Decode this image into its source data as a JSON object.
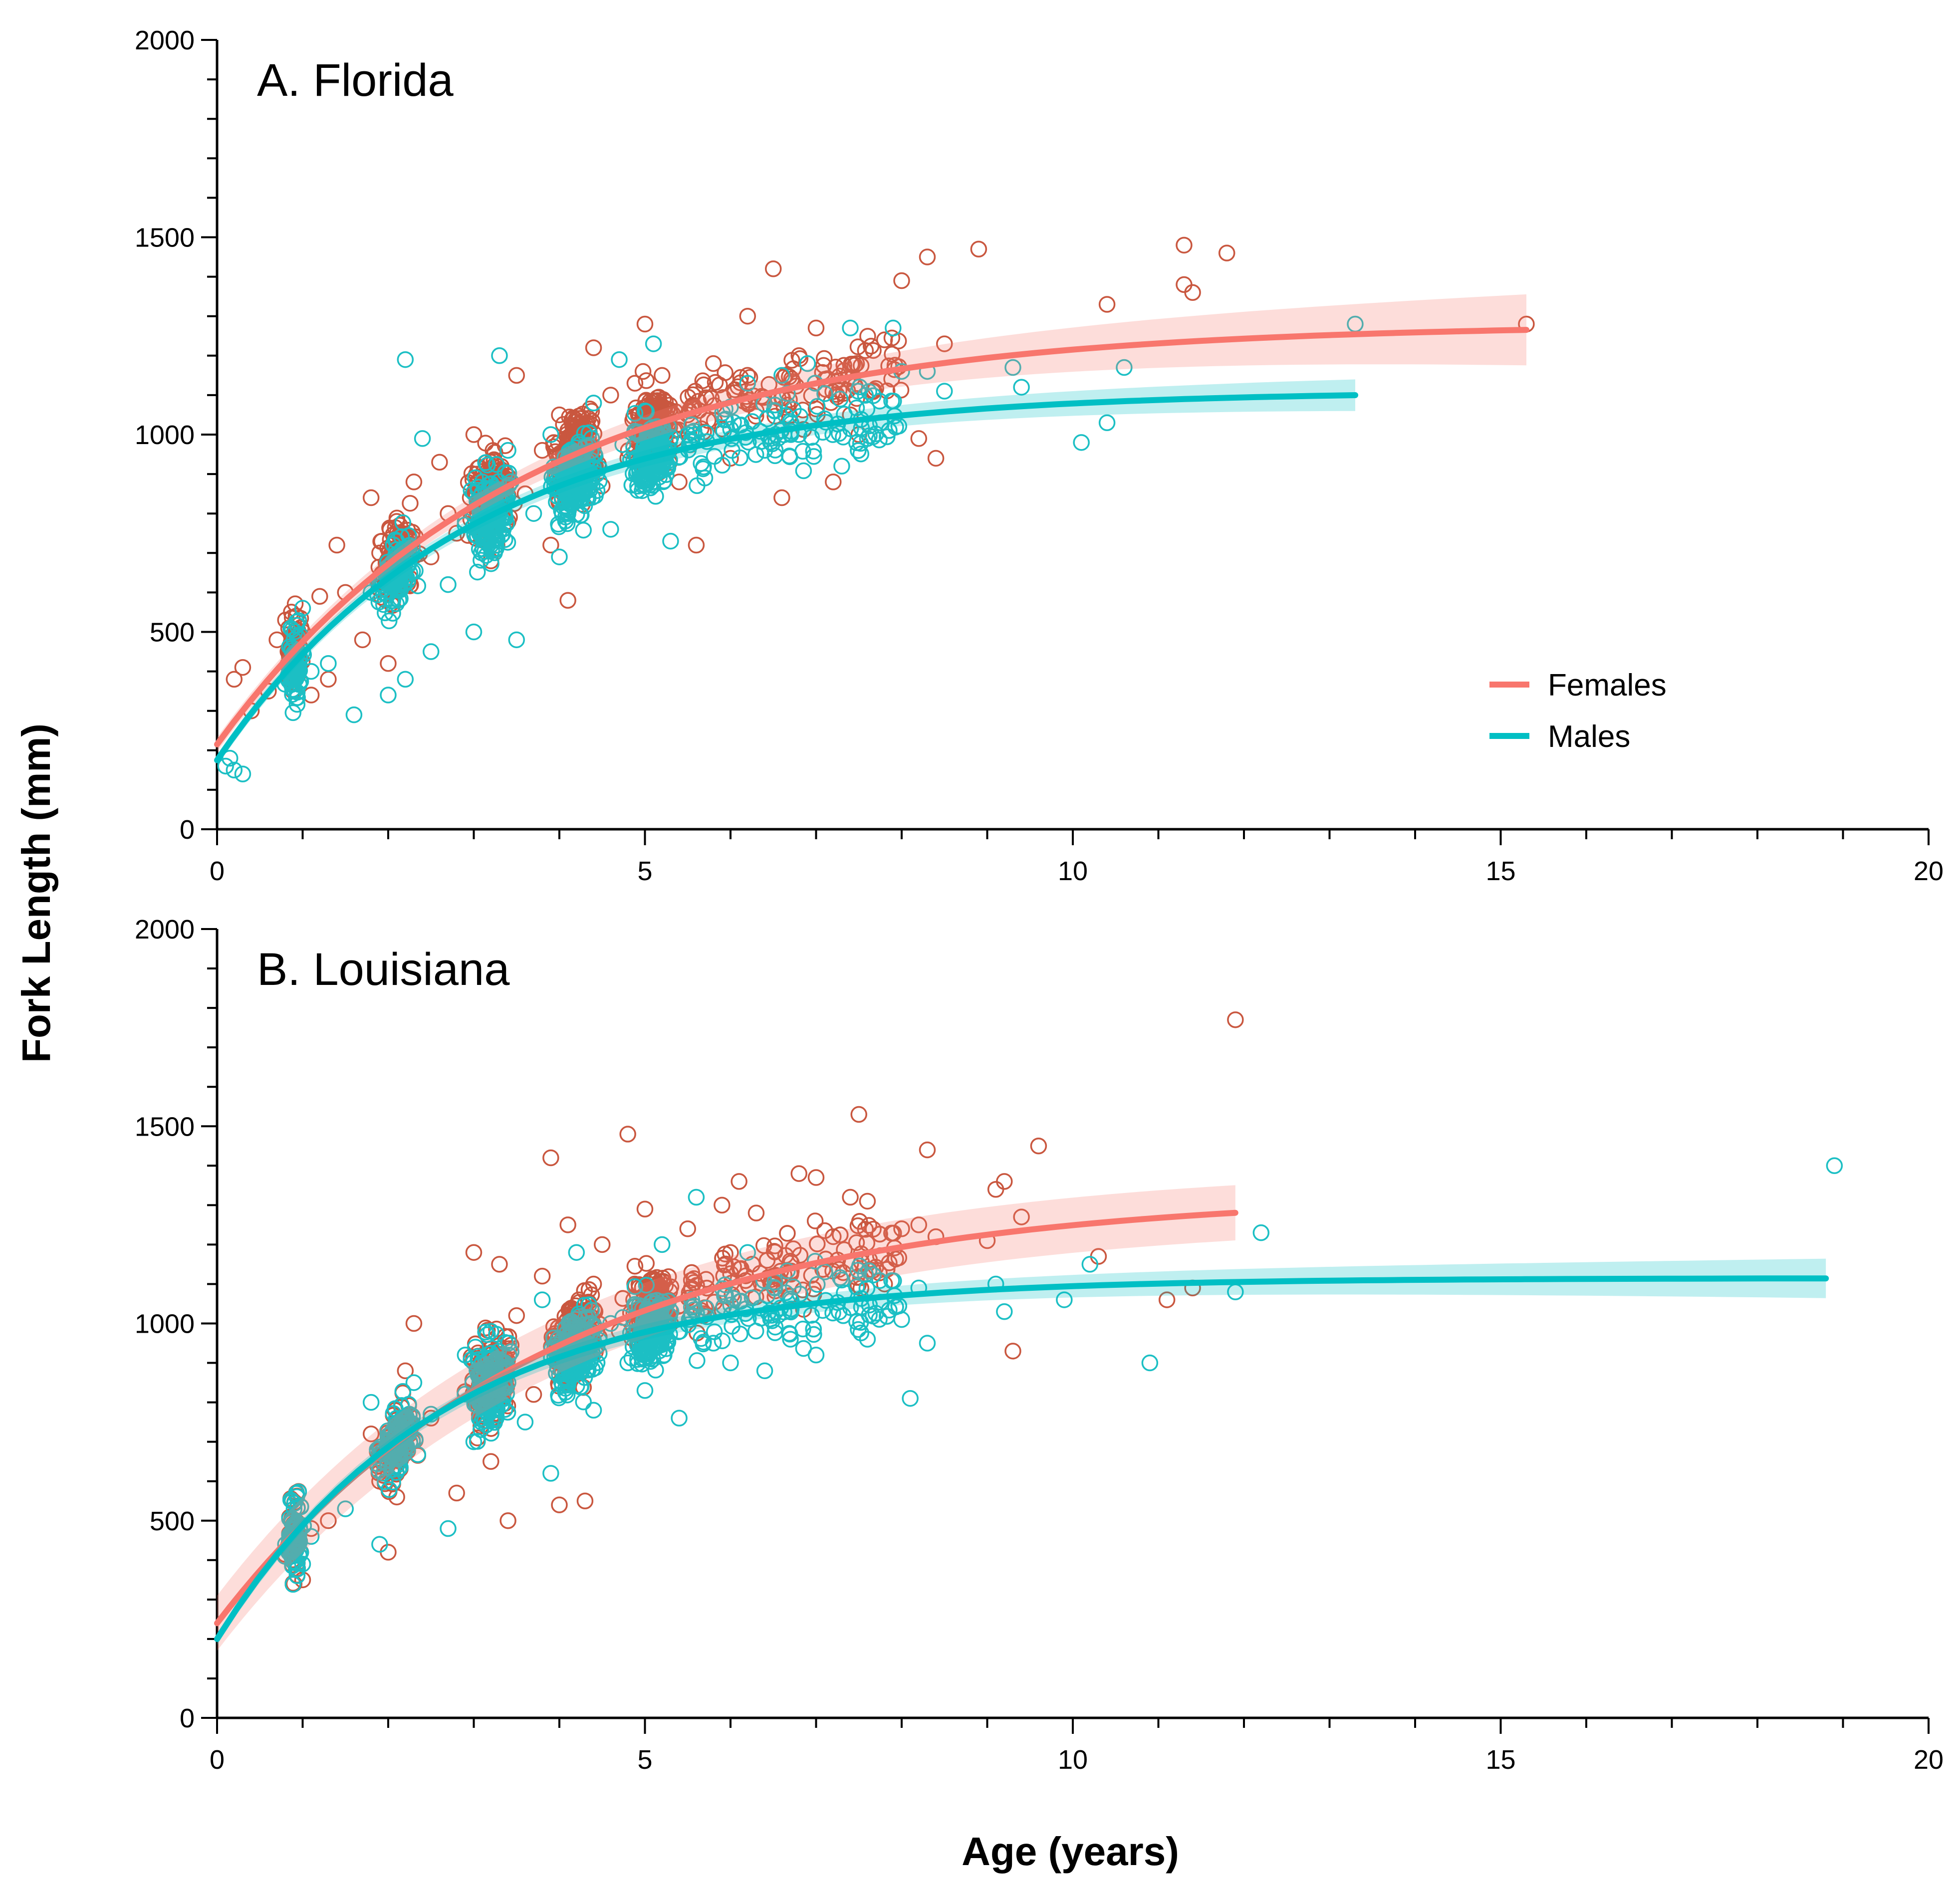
{
  "figure": {
    "ylabel": "Fork Length (mm)",
    "xlabel": "Age (years)",
    "colors": {
      "females": "#F8766D",
      "males": "#00BFC4",
      "points_females": "#C9573F",
      "points_males": "#1CBFC4"
    }
  },
  "legend": {
    "entries": [
      "Females",
      "Males"
    ],
    "position": "right"
  },
  "chart_data": [
    {
      "type": "scatter",
      "title": "A. Florida",
      "xlabel": "Age (years)",
      "ylabel": "Fork Length (mm)",
      "xlim": [
        0,
        20
      ],
      "ylim": [
        0,
        2000
      ],
      "xticks": [
        0,
        5,
        10,
        15,
        20
      ],
      "yticks": [
        0,
        500,
        1000,
        1500,
        2000
      ],
      "grid": false,
      "series": [
        {
          "name": "Females",
          "fit": {
            "model": "von Bertalanffy",
            "Linf": 1280,
            "k": 0.28,
            "L0": 215,
            "age_range": [
              0,
              15.3
            ]
          },
          "ci_halfwidth": [
            18,
            90
          ],
          "points": [
            [
              0.2,
              380
            ],
            [
              0.3,
              410
            ],
            [
              0.4,
              300
            ],
            [
              0.6,
              350
            ],
            [
              0.7,
              480
            ],
            [
              0.8,
              530
            ],
            [
              0.9,
              420
            ],
            [
              1,
              500
            ],
            [
              1.1,
              340
            ],
            [
              1.2,
              590
            ],
            [
              1.3,
              380
            ],
            [
              1.4,
              720
            ],
            [
              1.5,
              600
            ],
            [
              1.7,
              480
            ],
            [
              1.8,
              840
            ],
            [
              1.9,
              700
            ],
            [
              2,
              420
            ],
            [
              2.1,
              780
            ],
            [
              2.2,
              650
            ],
            [
              2.3,
              880
            ],
            [
              2.5,
              690
            ],
            [
              2.6,
              930
            ],
            [
              2.7,
              800
            ],
            [
              2.8,
              750
            ],
            [
              3,
              1000
            ],
            [
              3.1,
              820
            ],
            [
              3.2,
              680
            ],
            [
              3.3,
              900
            ],
            [
              3.4,
              780
            ],
            [
              3.5,
              1150
            ],
            [
              3.6,
              850
            ],
            [
              3.8,
              960
            ],
            [
              3.9,
              720
            ],
            [
              4,
              1050
            ],
            [
              4.1,
              580
            ],
            [
              4.2,
              900
            ],
            [
              4.3,
              980
            ],
            [
              4.4,
              1220
            ],
            [
              4.5,
              870
            ],
            [
              4.6,
              1100
            ],
            [
              4.8,
              940
            ],
            [
              5,
              1280
            ],
            [
              5.1,
              1000
            ],
            [
              5.2,
              1150
            ],
            [
              5.4,
              880
            ],
            [
              5.5,
              1050
            ],
            [
              5.6,
              720
            ],
            [
              5.8,
              1180
            ],
            [
              6,
              940
            ],
            [
              6.2,
              1300
            ],
            [
              6.3,
              1060
            ],
            [
              6.5,
              1420
            ],
            [
              6.6,
              840
            ],
            [
              6.8,
              1200
            ],
            [
              7,
              1270
            ],
            [
              7.2,
              880
            ],
            [
              7.4,
              1050
            ],
            [
              7.5,
              1000
            ],
            [
              7.8,
              1240
            ],
            [
              8,
              1390
            ],
            [
              8.2,
              990
            ],
            [
              8.3,
              1450
            ],
            [
              8.4,
              940
            ],
            [
              8.5,
              1230
            ],
            [
              8.9,
              1470
            ],
            [
              10.4,
              1330
            ],
            [
              11.3,
              1480
            ],
            [
              11.3,
              1380
            ],
            [
              11.4,
              1360
            ],
            [
              11.8,
              1460
            ],
            [
              15.3,
              1280
            ]
          ]
        },
        {
          "name": "Males",
          "fit": {
            "model": "von Bertalanffy",
            "Linf": 1110,
            "k": 0.34,
            "L0": 175,
            "age_range": [
              0,
              13.3
            ]
          },
          "ci_halfwidth": [
            15,
            40
          ],
          "points": [
            [
              0.1,
              160
            ],
            [
              0.15,
              180
            ],
            [
              0.2,
              150
            ],
            [
              0.3,
              140
            ],
            [
              0.9,
              480
            ],
            [
              1,
              450
            ],
            [
              1,
              560
            ],
            [
              1.1,
              400
            ],
            [
              1.3,
              420
            ],
            [
              1.6,
              290
            ],
            [
              1.8,
              600
            ],
            [
              2,
              340
            ],
            [
              2.1,
              730
            ],
            [
              2.2,
              380
            ],
            [
              2.2,
              1190
            ],
            [
              2.4,
              990
            ],
            [
              2.5,
              450
            ],
            [
              2.7,
              620
            ],
            [
              2.9,
              780
            ],
            [
              3,
              500
            ],
            [
              3.1,
              880
            ],
            [
              3.2,
              720
            ],
            [
              3.3,
              1200
            ],
            [
              3.4,
              960
            ],
            [
              3.5,
              480
            ],
            [
              3.7,
              800
            ],
            [
              3.9,
              1000
            ],
            [
              4,
              690
            ],
            [
              4.1,
              940
            ],
            [
              4.2,
              860
            ],
            [
              4.4,
              1080
            ],
            [
              4.6,
              760
            ],
            [
              4.7,
              1190
            ],
            [
              4.9,
              900
            ],
            [
              5,
              1060
            ],
            [
              5.1,
              1230
            ],
            [
              5.2,
              950
            ],
            [
              5.3,
              730
            ],
            [
              5.5,
              1000
            ],
            [
              5.7,
              890
            ],
            [
              6,
              1070
            ],
            [
              6.2,
              1130
            ],
            [
              6.4,
              960
            ],
            [
              6.6,
              1150
            ],
            [
              6.8,
              1000
            ],
            [
              6.9,
              1180
            ],
            [
              7.1,
              1040
            ],
            [
              7.3,
              920
            ],
            [
              7.4,
              1270
            ],
            [
              7.6,
              990
            ],
            [
              7.9,
              1270
            ],
            [
              8,
              1160
            ],
            [
              8.3,
              1160
            ],
            [
              8.5,
              1110
            ],
            [
              9.3,
              1170
            ],
            [
              9.4,
              1120
            ],
            [
              10.1,
              980
            ],
            [
              10.4,
              1030
            ],
            [
              10.6,
              1170
            ],
            [
              13.3,
              1280
            ]
          ]
        }
      ]
    },
    {
      "type": "scatter",
      "title": "B. Louisiana",
      "xlabel": "Age (years)",
      "ylabel": "Fork Length (mm)",
      "xlim": [
        0,
        20
      ],
      "ylim": [
        0,
        2000
      ],
      "xticks": [
        0,
        5,
        10,
        15,
        20
      ],
      "yticks": [
        0,
        500,
        1000,
        1500,
        2000
      ],
      "grid": false,
      "series": [
        {
          "name": "Females",
          "fit": {
            "model": "von Bertalanffy",
            "Linf": 1330,
            "k": 0.26,
            "L0": 240,
            "age_range": [
              0,
              11.9
            ]
          },
          "ci_halfwidth": [
            70,
            70
          ],
          "points": [
            [
              0.9,
              340
            ],
            [
              1,
              350
            ],
            [
              1.1,
              480
            ],
            [
              1.3,
              500
            ],
            [
              1.8,
              720
            ],
            [
              1.9,
              600
            ],
            [
              2,
              420
            ],
            [
              2.1,
              560
            ],
            [
              2.2,
              880
            ],
            [
              2.3,
              1000
            ],
            [
              2.5,
              760
            ],
            [
              2.8,
              570
            ],
            [
              3,
              1180
            ],
            [
              3.1,
              900
            ],
            [
              3.2,
              650
            ],
            [
              3.3,
              1150
            ],
            [
              3.4,
              500
            ],
            [
              3.5,
              1020
            ],
            [
              3.7,
              820
            ],
            [
              3.8,
              1120
            ],
            [
              3.9,
              1420
            ],
            [
              4,
              540
            ],
            [
              4.1,
              1250
            ],
            [
              4.2,
              900
            ],
            [
              4.3,
              550
            ],
            [
              4.4,
              1100
            ],
            [
              4.5,
              1200
            ],
            [
              4.7,
              980
            ],
            [
              4.8,
              1480
            ],
            [
              5,
              1290
            ],
            [
              5.1,
              1110
            ],
            [
              5.3,
              1000
            ],
            [
              5.5,
              1240
            ],
            [
              5.7,
              1040
            ],
            [
              5.9,
              1300
            ],
            [
              6,
              1180
            ],
            [
              6.1,
              1360
            ],
            [
              6.3,
              1280
            ],
            [
              6.5,
              1120
            ],
            [
              6.8,
              1380
            ],
            [
              7,
              1370
            ],
            [
              7.2,
              1220
            ],
            [
              7.4,
              1320
            ],
            [
              7.5,
              1530
            ],
            [
              7.6,
              1310
            ],
            [
              7.8,
              1100
            ],
            [
              8,
              1240
            ],
            [
              8.2,
              1250
            ],
            [
              8.3,
              1440
            ],
            [
              8.4,
              1220
            ],
            [
              9,
              1210
            ],
            [
              9.1,
              1340
            ],
            [
              9.2,
              1360
            ],
            [
              9.3,
              930
            ],
            [
              9.4,
              1270
            ],
            [
              9.6,
              1450
            ],
            [
              10.3,
              1170
            ],
            [
              11.1,
              1060
            ],
            [
              11.4,
              1090
            ],
            [
              11.9,
              1770
            ]
          ]
        },
        {
          "name": "Males",
          "fit": {
            "model": "von Bertalanffy",
            "Linf": 1115,
            "k": 0.38,
            "L0": 200,
            "age_range": [
              0,
              18.8
            ]
          },
          "ci_halfwidth": [
            15,
            50
          ],
          "points": [
            [
              0.8,
              440
            ],
            [
              0.9,
              530
            ],
            [
              1,
              390
            ],
            [
              1.1,
              460
            ],
            [
              1.5,
              530
            ],
            [
              1.8,
              800
            ],
            [
              1.9,
              440
            ],
            [
              2,
              700
            ],
            [
              2.1,
              640
            ],
            [
              2.3,
              850
            ],
            [
              2.5,
              770
            ],
            [
              2.7,
              480
            ],
            [
              2.9,
              920
            ],
            [
              3,
              700
            ],
            [
              3.2,
              980
            ],
            [
              3.4,
              850
            ],
            [
              3.6,
              750
            ],
            [
              3.8,
              1060
            ],
            [
              3.9,
              620
            ],
            [
              4,
              870
            ],
            [
              4.2,
              1180
            ],
            [
              4.4,
              780
            ],
            [
              4.6,
              1000
            ],
            [
              4.8,
              900
            ],
            [
              5,
              830
            ],
            [
              5.2,
              1200
            ],
            [
              5.4,
              760
            ],
            [
              5.6,
              1320
            ],
            [
              5.8,
              950
            ],
            [
              6,
              900
            ],
            [
              6.2,
              1180
            ],
            [
              6.4,
              880
            ],
            [
              6.7,
              960
            ],
            [
              7,
              920
            ],
            [
              7.3,
              1110
            ],
            [
              7.6,
              960
            ],
            [
              8,
              1010
            ],
            [
              8.1,
              810
            ],
            [
              8.2,
              1090
            ],
            [
              8.3,
              950
            ],
            [
              9.1,
              1100
            ],
            [
              9.2,
              1030
            ],
            [
              9.9,
              1060
            ],
            [
              10.2,
              1150
            ],
            [
              10.9,
              900
            ],
            [
              11.9,
              1080
            ],
            [
              12.2,
              1230
            ],
            [
              18.9,
              1400
            ]
          ]
        }
      ]
    }
  ]
}
